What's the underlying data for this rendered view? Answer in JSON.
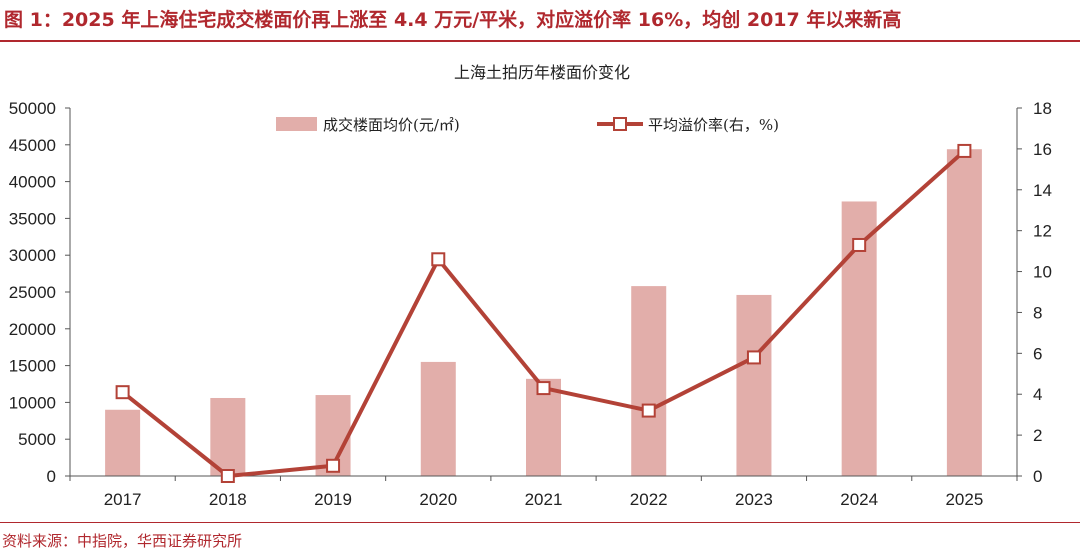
{
  "figure": {
    "title": "图 1：2025 年上海住宅成交楼面价再上涨至 4.4 万元/平米，对应溢价率 16%，均创 2017 年以来新高",
    "source": "资料来源：中指院，华西证券研究所"
  },
  "colors": {
    "accent": "#b0282e",
    "bar": "#e2aeaa",
    "line": "#b34237",
    "marker_fill": "#ffffff"
  },
  "chart_data": {
    "type": "bar+line",
    "title": "上海土拍历年楼面价变化",
    "categories": [
      "2017",
      "2018",
      "2019",
      "2020",
      "2021",
      "2022",
      "2023",
      "2024",
      "2025"
    ],
    "series": [
      {
        "name": "成交楼面均价(元/㎡)",
        "type": "bar",
        "axis": "left",
        "values": [
          9000,
          10600,
          11000,
          15500,
          13200,
          25800,
          24600,
          37300,
          44400
        ]
      },
      {
        "name": "平均溢价率(右，%)",
        "type": "line",
        "axis": "right",
        "values": [
          4.1,
          0.0,
          0.5,
          10.6,
          4.3,
          3.2,
          5.8,
          11.3,
          15.9
        ]
      }
    ],
    "y_left": {
      "min": 0,
      "max": 50000,
      "ticks": [
        "0",
        "5000",
        "10000",
        "15000",
        "20000",
        "25000",
        "30000",
        "35000",
        "40000",
        "45000",
        "50000"
      ]
    },
    "y_right": {
      "min": 0,
      "max": 18,
      "ticks": [
        "0",
        "2",
        "4",
        "6",
        "8",
        "10",
        "12",
        "14",
        "16",
        "18"
      ]
    },
    "legend_position": "top"
  }
}
